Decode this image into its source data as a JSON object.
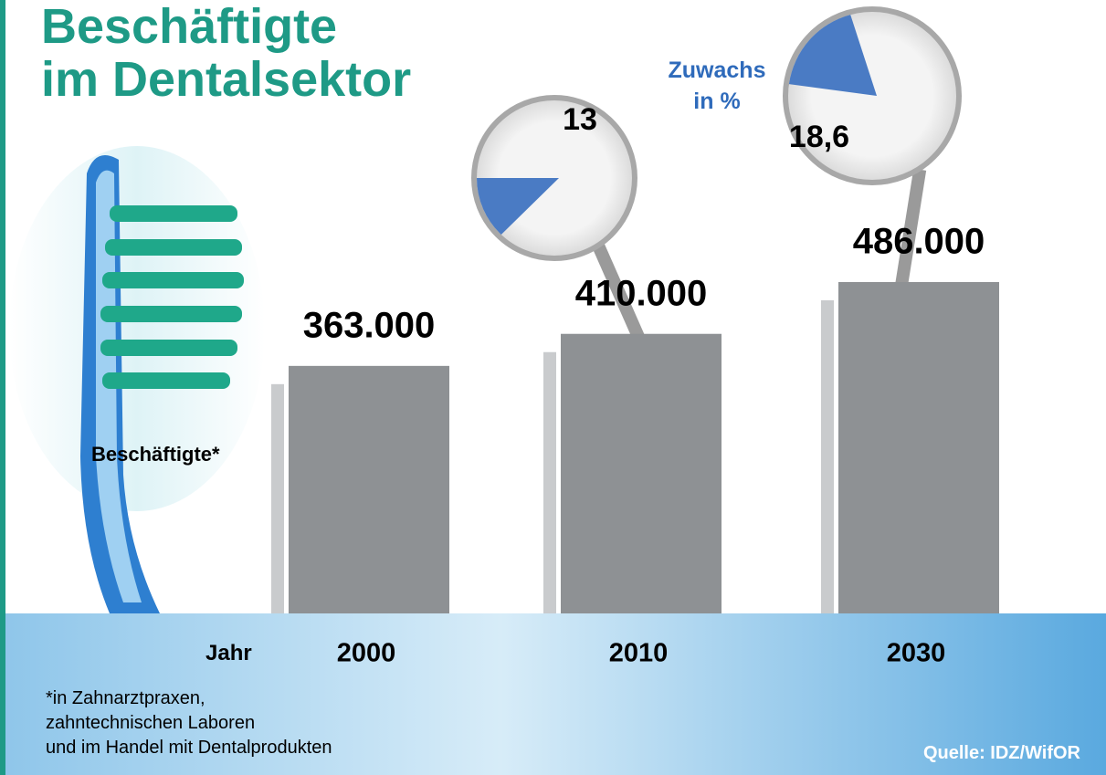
{
  "chart_data": {
    "type": "bar",
    "title": [
      "Beschäftigte",
      "im Dentalsektor"
    ],
    "y_label": "Beschäftigte*",
    "x_label": "Jahr",
    "categories": [
      "2000",
      "2010",
      "2030"
    ],
    "values": [
      363000,
      410000,
      486000
    ],
    "value_labels": [
      "363.000",
      "410.000",
      "486.000"
    ],
    "color": "#8e9194",
    "growth": {
      "title": [
        "Zuwachs",
        "in %"
      ],
      "values": [
        null,
        13,
        18.6
      ],
      "value_labels": [
        null,
        "13",
        "18,6"
      ],
      "color": "#4a7bc4"
    },
    "footnote": [
      "*in Zahnarztpraxen,",
      "zahntechnischen Laboren",
      "und im Handel mit Dentalprodukten"
    ],
    "source": "Quelle: IDZ/WifOR"
  }
}
